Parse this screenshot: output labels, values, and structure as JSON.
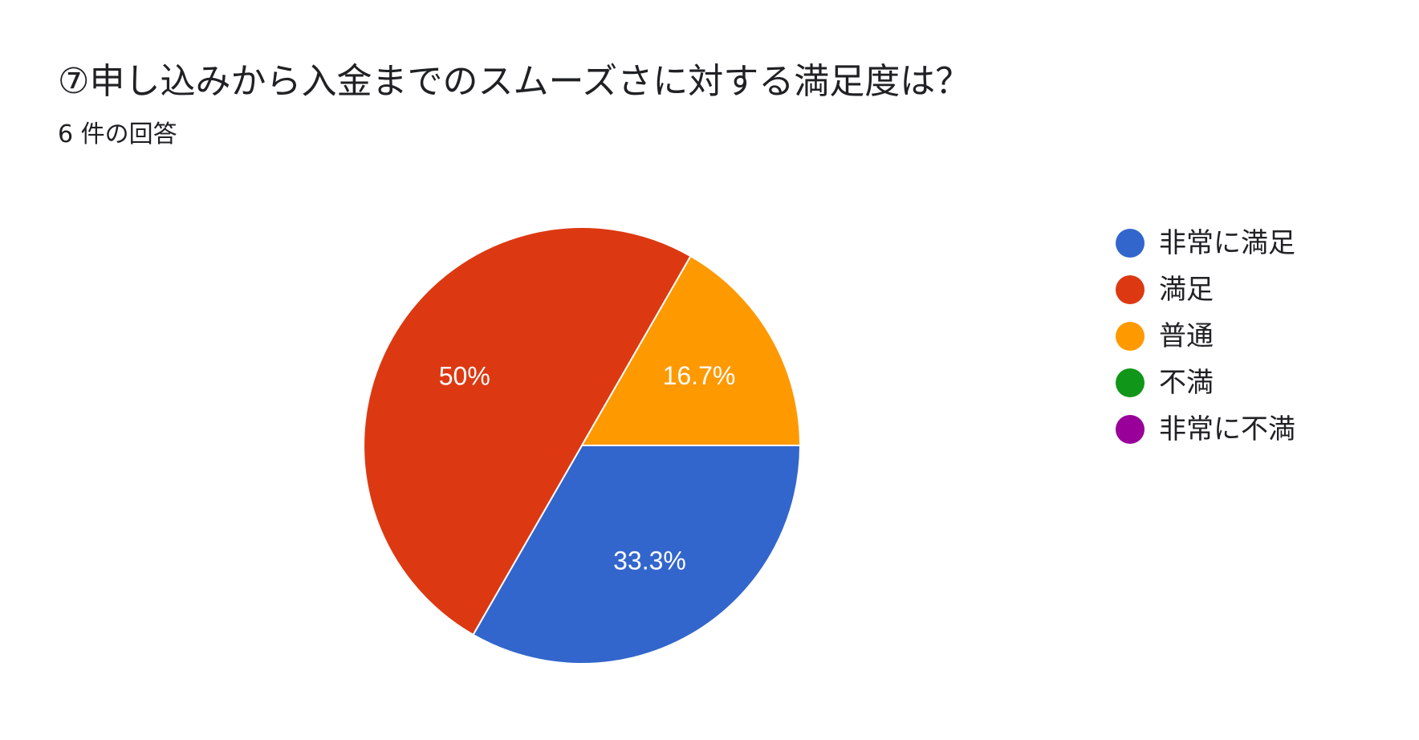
{
  "header": {
    "title": "⑦申し込みから入金までのスムーズさに対する満足度は？",
    "subtitle": "6 件の回答"
  },
  "chart_data": {
    "type": "pie",
    "categories": [
      "非常に満足",
      "満足",
      "普通",
      "不満",
      "非常に不満"
    ],
    "values": [
      33.3,
      50,
      16.7,
      0,
      0
    ],
    "data_labels": [
      "33.3%",
      "50%",
      "16.7%",
      "",
      ""
    ],
    "colors": [
      "#3366cc",
      "#dc3912",
      "#ff9900",
      "#109618",
      "#990099"
    ],
    "legend_position": "right"
  }
}
